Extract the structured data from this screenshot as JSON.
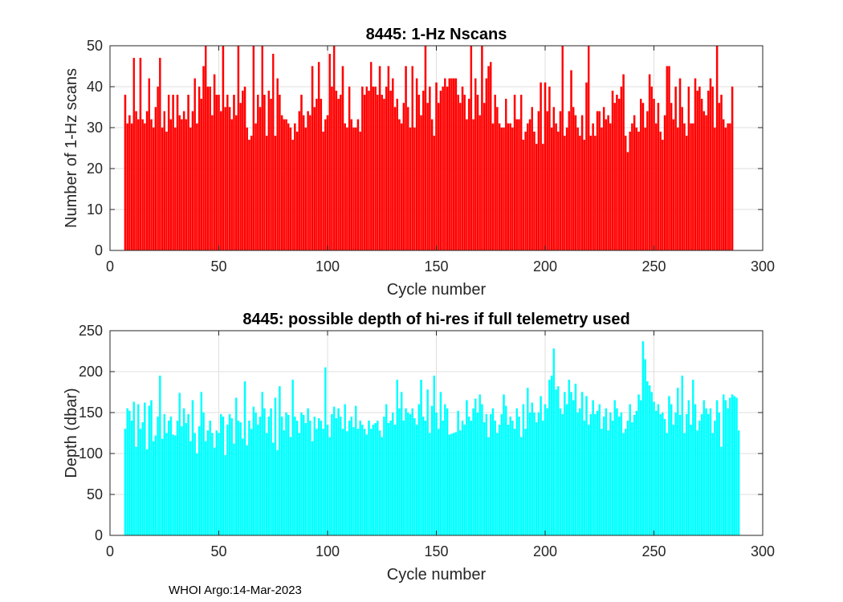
{
  "chart_data": [
    {
      "type": "bar",
      "title": "8445: 1-Hz Nscans",
      "xlabel": "Cycle number",
      "ylabel": "Number of 1-Hz scans",
      "xlim": [
        0,
        300
      ],
      "ylim": [
        0,
        50
      ],
      "xticks": [
        0,
        50,
        100,
        150,
        200,
        250,
        300
      ],
      "yticks": [
        0,
        10,
        20,
        30,
        40,
        50
      ],
      "grid": true,
      "color": "#ff0000",
      "x_start": 7,
      "values": [
        38,
        31,
        33,
        31,
        47,
        34,
        32,
        47,
        32,
        31,
        34,
        42,
        32,
        30,
        35,
        40,
        47,
        30,
        34,
        29,
        38,
        32,
        38,
        30,
        38,
        33,
        32,
        34,
        32,
        38,
        30,
        34,
        42,
        31,
        40,
        37,
        45,
        50,
        40,
        40,
        33,
        43,
        38,
        38,
        34,
        50,
        35,
        38,
        35,
        32,
        38,
        33,
        50,
        36,
        39,
        40,
        30,
        27,
        28,
        50,
        31,
        38,
        35,
        50,
        38,
        28,
        39,
        37,
        48,
        28,
        42,
        38,
        33,
        32,
        32,
        31,
        30,
        27,
        31,
        29,
        34,
        38,
        33,
        30,
        34,
        33,
        45,
        35,
        37,
        46,
        37,
        29,
        32,
        33,
        48,
        40,
        50,
        39,
        37,
        38,
        45,
        31,
        30,
        40,
        32,
        30,
        30,
        32,
        29,
        40,
        38,
        40,
        39,
        46,
        40,
        40,
        38,
        45,
        38,
        37,
        40,
        45,
        39,
        42,
        35,
        37,
        32,
        31,
        36,
        45,
        35,
        30,
        45,
        30,
        42,
        38,
        33,
        39,
        50,
        36,
        40,
        32,
        28,
        41,
        36,
        39,
        40,
        42,
        40,
        42,
        42,
        42,
        42,
        38,
        36,
        40,
        38,
        32,
        37,
        50,
        32,
        42,
        38,
        33,
        50,
        36,
        42,
        45,
        46,
        31,
        38,
        35,
        31,
        30,
        30,
        37,
        31,
        31,
        30,
        38,
        32,
        32,
        38,
        27,
        29,
        31,
        32,
        35,
        29,
        26,
        34,
        41,
        26,
        41,
        34,
        40,
        30,
        35,
        31,
        29,
        34,
        50,
        28,
        30,
        34,
        44,
        35,
        33,
        30,
        28,
        33,
        27,
        41,
        50,
        28,
        31,
        28,
        34,
        34,
        30,
        35,
        32,
        33,
        31,
        39,
        36,
        38,
        37,
        40,
        43,
        28,
        24,
        29,
        31,
        33,
        30,
        29,
        37,
        36,
        30,
        34,
        43,
        40,
        37,
        31,
        36,
        29,
        27,
        33,
        45,
        45,
        36,
        32,
        40,
        30,
        42,
        35,
        31,
        28,
        40,
        31,
        31,
        42,
        39,
        40,
        37,
        34,
        33,
        39,
        42,
        40,
        30,
        50,
        36,
        38,
        32,
        30,
        31,
        31,
        40
      ]
    },
    {
      "type": "bar",
      "title": "8445: possible depth of hi-res if full telemetry used",
      "xlabel": "Cycle number",
      "ylabel": "Depth (dbar)",
      "xlim": [
        0,
        300
      ],
      "ylim": [
        0,
        250
      ],
      "xticks": [
        0,
        50,
        100,
        150,
        200,
        250,
        300
      ],
      "yticks": [
        0,
        50,
        100,
        150,
        200,
        250
      ],
      "grid": true,
      "color": "#00ffff",
      "x_start": 7,
      "values": [
        130,
        155,
        152,
        140,
        163,
        108,
        160,
        130,
        138,
        162,
        105,
        158,
        165,
        115,
        122,
        145,
        195,
        118,
        148,
        125,
        140,
        145,
        123,
        122,
        140,
        174,
        133,
        155,
        137,
        148,
        115,
        165,
        125,
        100,
        133,
        175,
        150,
        115,
        128,
        140,
        125,
        107,
        128,
        125,
        148,
        145,
        98,
        135,
        148,
        143,
        112,
        168,
        140,
        138,
        118,
        188,
        110,
        140,
        130,
        157,
        150,
        135,
        145,
        175,
        155,
        125,
        145,
        155,
        113,
        168,
        104,
        182,
        145,
        128,
        150,
        147,
        120,
        190,
        145,
        140,
        125,
        150,
        147,
        137,
        155,
        140,
        115,
        145,
        130,
        143,
        140,
        130,
        205,
        135,
        120,
        148,
        157,
        143,
        155,
        145,
        130,
        160,
        127,
        140,
        145,
        132,
        158,
        130,
        140,
        135,
        130,
        123,
        140,
        130,
        135,
        137,
        140,
        128,
        120,
        145,
        160,
        137,
        140,
        150,
        135,
        190,
        155,
        175,
        140,
        155,
        150,
        148,
        155,
        143,
        135,
        160,
        190,
        145,
        140,
        178,
        125,
        158,
        195,
        150,
        130,
        175,
        140,
        160,
        155,
        123,
        124,
        125,
        126,
        152,
        128,
        140,
        135,
        165,
        145,
        140,
        155,
        167,
        150,
        172,
        160,
        138,
        148,
        120,
        148,
        155,
        140,
        125,
        135,
        148,
        172,
        158,
        135,
        145,
        140,
        130,
        155,
        145,
        120,
        160,
        130,
        180,
        150,
        162,
        150,
        138,
        150,
        170,
        140,
        160,
        155,
        190,
        195,
        228,
        178,
        182,
        155,
        148,
        175,
        160,
        190,
        175,
        165,
        185,
        150,
        155,
        175,
        140,
        170,
        135,
        148,
        165,
        148,
        152,
        160,
        130,
        145,
        155,
        128,
        150,
        140,
        165,
        155,
        145,
        150,
        125,
        130,
        140,
        160,
        138,
        147,
        152,
        172,
        165,
        237,
        215,
        188,
        183,
        175,
        163,
        152,
        160,
        148,
        150,
        142,
        125,
        170,
        160,
        135,
        150,
        180,
        147,
        195,
        125,
        148,
        165,
        135,
        190,
        160,
        128,
        140,
        148,
        165,
        155,
        148,
        155,
        125,
        140,
        165,
        150,
        108,
        172,
        165,
        155,
        168,
        172,
        170,
        168,
        128
      ]
    }
  ],
  "footer": "WHOI Argo:14-Mar-2023"
}
